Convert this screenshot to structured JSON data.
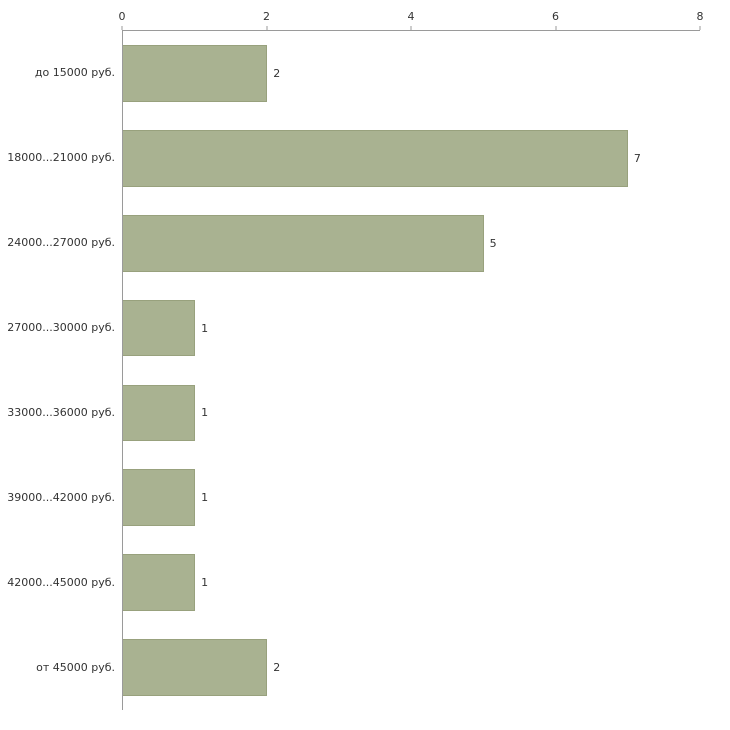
{
  "chart_data": {
    "type": "bar",
    "orientation": "horizontal",
    "title": "",
    "xlabel": "",
    "ylabel": "",
    "categories": [
      "до 15000 руб.",
      "18000...21000 руб.",
      "24000...27000 руб.",
      "27000...30000 руб.",
      "33000...36000 руб.",
      "39000...42000 руб.",
      "42000...45000 руб.",
      "от 45000 руб."
    ],
    "values": [
      2,
      7,
      5,
      1,
      1,
      1,
      1,
      2
    ],
    "xlim": [
      0,
      8
    ],
    "x_ticks": [
      0,
      2,
      4,
      6,
      8
    ],
    "grid": false,
    "legend_position": "none",
    "colors": {
      "bar_fill": "#a9b291",
      "bar_border": "#98a17d",
      "axis": "#9a9a9a",
      "text": "#333333",
      "background": "#ffffff"
    }
  }
}
